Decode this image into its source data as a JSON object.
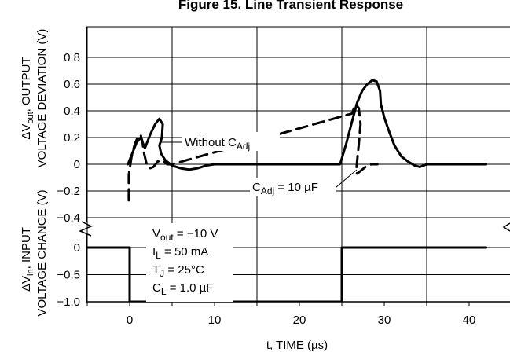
{
  "chart_data": {
    "type": "line",
    "title": "Figure 15. Line Transient Response",
    "xlabel": "t, TIME (µs)",
    "xlim": [
      -5,
      42
    ],
    "x_ticks": [
      "0",
      "10",
      "20",
      "30",
      "40"
    ],
    "grid": true,
    "top_panel": {
      "ylabel_line1": "ΔV",
      "ylabel_sub": "out",
      "ylabel_rest": ", OUTPUT",
      "ylabel_line2": "VOLTAGE DEVIATION (V)",
      "ylim": [
        -0.45,
        1.0
      ],
      "y_ticks": [
        "0.8",
        "0.6",
        "0.4",
        "0.2",
        "0",
        "−0.2",
        "−0.4"
      ],
      "series": [
        {
          "name": "Without C_Adj",
          "style": "solid",
          "x": [
            -0.2,
            0.3,
            0.8,
            1.3,
            1.8,
            2.4,
            3.0,
            3.5,
            3.9,
            3.8,
            3.5,
            3.7,
            4.2,
            5.0,
            6.0,
            7.0,
            8.0,
            9.0,
            10.0,
            24.8,
            25.5,
            26.2,
            26.8,
            27.4,
            28.0,
            28.6,
            29.1,
            29.5,
            29.6,
            30.0,
            30.6,
            31.2,
            32.0,
            32.8,
            33.6,
            34.2,
            35.0,
            42.0
          ],
          "y": [
            0.0,
            0.08,
            0.16,
            0.2,
            0.12,
            0.22,
            0.3,
            0.34,
            0.3,
            0.2,
            0.14,
            0.08,
            0.03,
            -0.01,
            -0.03,
            -0.04,
            -0.03,
            -0.01,
            0.0,
            0.0,
            0.15,
            0.32,
            0.46,
            0.55,
            0.6,
            0.63,
            0.62,
            0.55,
            0.45,
            0.35,
            0.24,
            0.14,
            0.06,
            0.02,
            -0.01,
            -0.02,
            0.0,
            0.0
          ]
        },
        {
          "name": "C_Adj = 10 µF",
          "style": "dashed",
          "x": [
            -0.1,
            -0.1,
            0.2,
            0.6,
            1.0,
            1.3,
            1.5,
            1.7,
            2.0,
            2.4,
            2.8,
            3.3,
            3.8,
            4.4,
            5.0,
            26.2,
            26.6,
            27.0,
            27.2,
            27.0,
            26.8,
            26.7,
            26.8,
            27.2,
            27.8,
            28.5,
            29.2
          ],
          "y": [
            -0.27,
            -0.08,
            0.05,
            0.15,
            0.21,
            0.22,
            0.17,
            0.08,
            0.0,
            -0.03,
            -0.02,
            0.02,
            0.03,
            0.0,
            0.0,
            0.38,
            0.45,
            0.42,
            0.3,
            0.15,
            0.02,
            -0.05,
            -0.07,
            -0.05,
            -0.02,
            0.0,
            0.0
          ]
        }
      ],
      "annotations": {
        "without_prefix": "Without C",
        "without_sub": "Adj",
        "cadj_prefix": "C",
        "cadj_sub": "Adj",
        "cadj_suffix": " = 10 µF"
      }
    },
    "bottom_panel": {
      "ylabel_line1": "ΔV",
      "ylabel_sub": "in",
      "ylabel_rest": ", INPUT",
      "ylabel_line2": "VOLTAGE CHANGE (V)",
      "ylim": [
        -1.0,
        0.1
      ],
      "y_ticks": [
        "0",
        "−0.5",
        "−1.0"
      ],
      "series": [
        {
          "name": "Input step",
          "style": "solid",
          "x": [
            -5.0,
            0.0,
            0.0,
            25.0,
            25.0,
            42.0
          ],
          "y": [
            0.0,
            0.0,
            -1.0,
            -1.0,
            0.0,
            0.0
          ]
        }
      ],
      "conditions": [
        {
          "prefix": "V",
          "sub": "out",
          "suffix": " = −10 V"
        },
        {
          "prefix": "I",
          "sub": "L",
          "suffix": " = 50 mA"
        },
        {
          "prefix": "T",
          "sub": "J",
          "suffix": " = 25°C"
        },
        {
          "prefix": "C",
          "sub": "L",
          "suffix": " = 1.0 µF"
        }
      ]
    }
  }
}
